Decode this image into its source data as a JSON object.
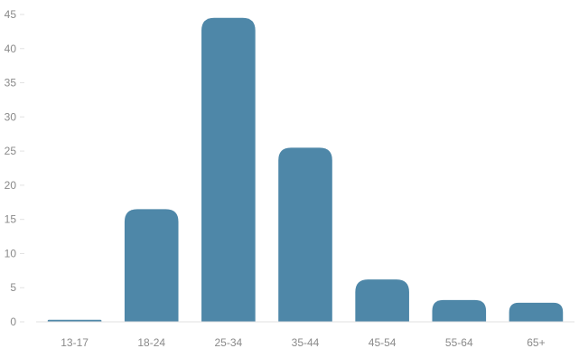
{
  "chart_data": {
    "type": "bar",
    "categories": [
      "13-17",
      "18-24",
      "25-34",
      "35-44",
      "45-54",
      "55-64",
      "65+"
    ],
    "values": [
      0.3,
      16.5,
      44.5,
      25.5,
      6.2,
      3.2,
      2.8
    ],
    "yticks": [
      "0",
      "5",
      "10",
      "15",
      "20",
      "25",
      "30",
      "35",
      "40",
      "45"
    ],
    "ylim": [
      0,
      45
    ],
    "title": "",
    "xlabel": "",
    "ylabel": "",
    "grid": false,
    "colors": {
      "bar": "#4e87a8",
      "tick_text": "#8a8a8a",
      "axis": "#e2e2e2"
    }
  }
}
